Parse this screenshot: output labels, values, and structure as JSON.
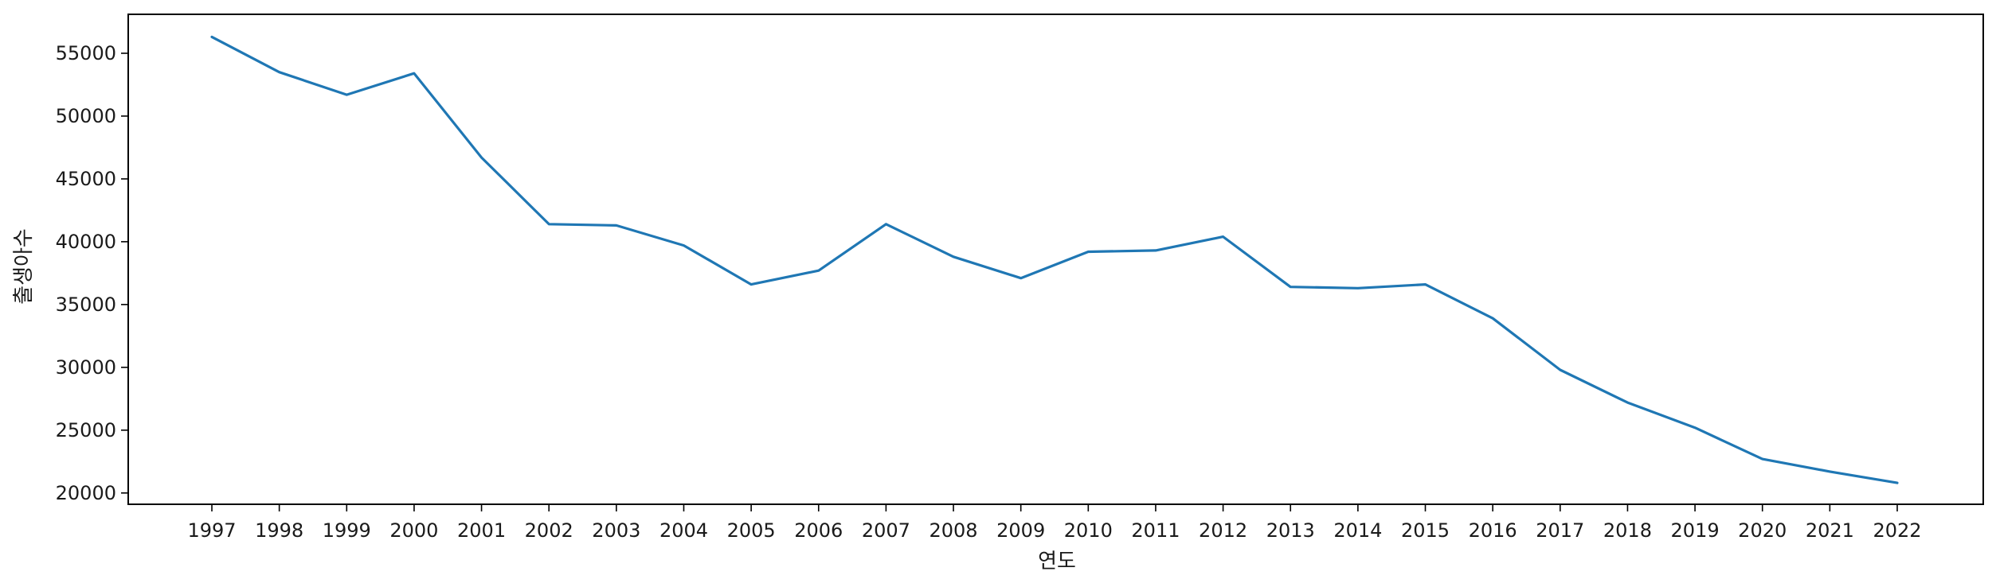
{
  "chart_data": {
    "type": "line",
    "xlabel": "연도",
    "ylabel": "출생아수",
    "x": [
      1997,
      1998,
      1999,
      2000,
      2001,
      2002,
      2003,
      2004,
      2005,
      2006,
      2007,
      2008,
      2009,
      2010,
      2011,
      2012,
      2013,
      2014,
      2015,
      2016,
      2017,
      2018,
      2019,
      2020,
      2021,
      2022
    ],
    "y_ticks": [
      20000,
      25000,
      30000,
      35000,
      40000,
      45000,
      50000,
      55000
    ],
    "ylim": [
      19100,
      58100
    ],
    "grid": false,
    "legend": "none",
    "series": [
      {
        "color": "#1f77b4",
        "values": [
          56300,
          53500,
          51700,
          53400,
          46700,
          41400,
          41300,
          39700,
          36600,
          37700,
          41400,
          38800,
          37100,
          39200,
          39300,
          40400,
          36400,
          36300,
          36600,
          33900,
          29800,
          27200,
          25200,
          22700,
          21700,
          20800
        ]
      }
    ]
  }
}
